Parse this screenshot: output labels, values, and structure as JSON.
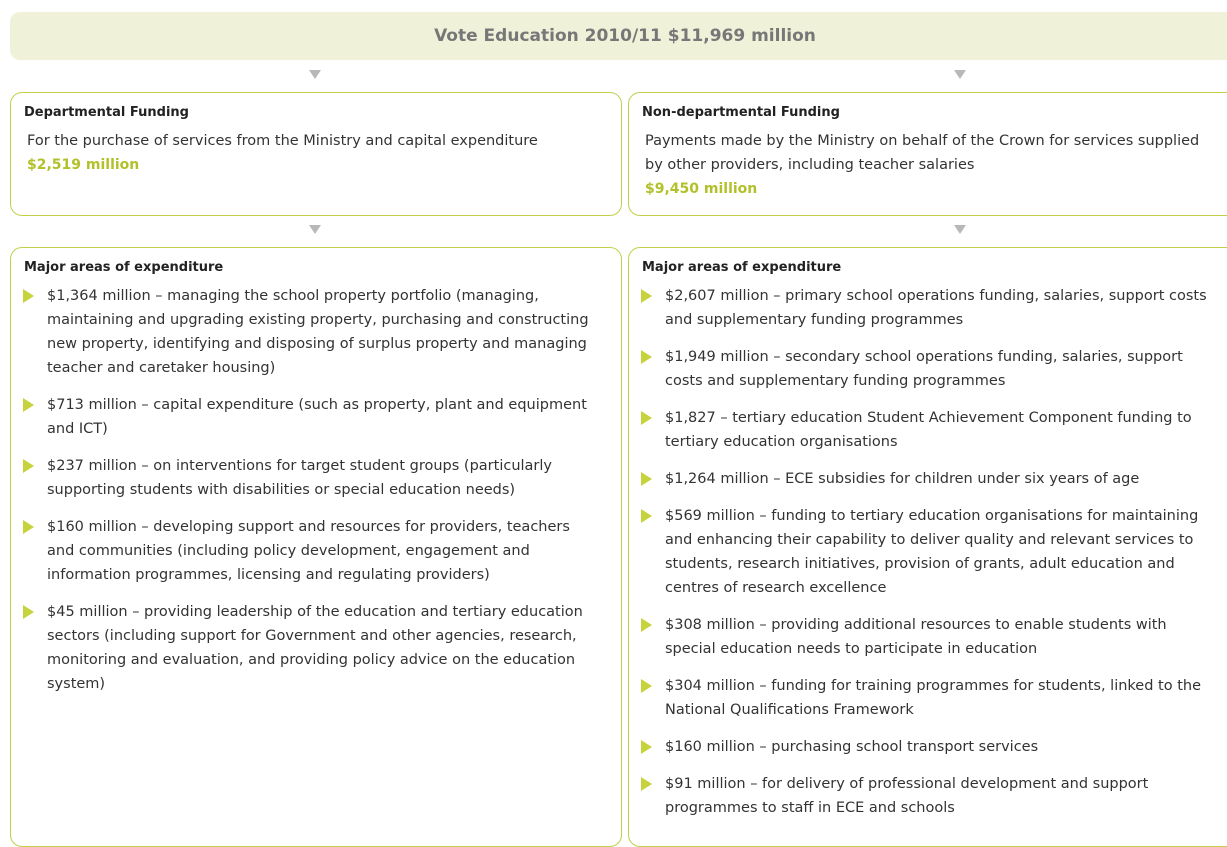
{
  "banner": "Vote Education 2010/11 $11,969 million",
  "departmental": {
    "title": "Departmental Funding",
    "text": "For the purchase of services from the Ministry and capital expenditure",
    "amount": "$2,519 million"
  },
  "non_departmental": {
    "title": "Non-departmental Funding",
    "text": "Payments made by the Ministry on behalf of the Crown for services supplied by other providers, including teacher salaries",
    "amount": "$9,450 million"
  },
  "departmental_areas": {
    "title": "Major areas of expenditure",
    "items": [
      "$1,364 million – managing the school property portfolio (managing, maintaining and upgrading existing property, purchasing and constructing new property, identifying and disposing of surplus property and managing teacher and caretaker housing)",
      "$713 million – capital expenditure (such as property, plant and equipment and ICT)",
      "$237 million – on interventions for target student groups (particularly supporting students with disabilities or special education needs)",
      "$160 million – developing support and resources for providers, teachers and communities (including policy development, engagement and information programmes, licensing and regulating providers)",
      "$45 million – providing leadership of the education and tertiary education sectors (including support for Government and other agencies, research, monitoring and evaluation, and providing policy advice on the education system)"
    ]
  },
  "non_departmental_areas": {
    "title": "Major areas of expenditure",
    "items": [
      "$2,607 million – primary school operations funding, salaries, support costs and supplementary funding programmes",
      "$1,949 million – secondary school operations funding, salaries, support costs and supplementary funding programmes",
      "$1,827 – tertiary education Student Achievement Component funding to tertiary education organisations",
      "$1,264 million – ECE subsidies for children under six years of age",
      "$569 million – funding to tertiary education organisations for maintaining and enhancing their capability to deliver quality and relevant services to students, research initiatives, provision of grants, adult education and centres of research excellence",
      "$308 million – providing additional resources to enable students with special education needs to participate in education",
      "$304 million – funding for training programmes for students, linked to the National Qualifications Framework",
      "$160 million – purchasing school transport services",
      "$91 million – for delivery of professional development and support programmes to staff in ECE and schools"
    ]
  }
}
